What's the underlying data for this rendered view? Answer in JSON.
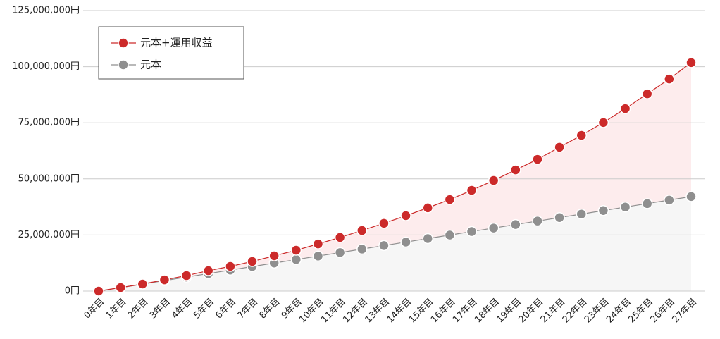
{
  "chart_data": {
    "type": "line",
    "categories": [
      "0年目",
      "1年目",
      "2年目",
      "3年目",
      "4年目",
      "5年目",
      "6年目",
      "7年目",
      "8年目",
      "9年目",
      "10年目",
      "11年目",
      "12年目",
      "13年目",
      "14年目",
      "15年目",
      "16年目",
      "17年目",
      "18年目",
      "19年目",
      "20年目",
      "21年目",
      "22年目",
      "23年目",
      "24年目",
      "25年目",
      "26年目",
      "27年目"
    ],
    "series": [
      {
        "name": "元本+運用収益",
        "color": "#cc2a2a",
        "area_color": "#fdeced",
        "values": [
          0,
          1570000,
          3140000,
          5000000,
          6900000,
          9100000,
          11000000,
          13200000,
          15700000,
          18200000,
          21000000,
          23900000,
          27000000,
          30200000,
          33600000,
          37100000,
          40800000,
          44900000,
          49300000,
          54000000,
          58700000,
          64100000,
          69400000,
          75100000,
          81300000,
          87900000,
          94500000,
          101800000
        ]
      },
      {
        "name": "元本",
        "color": "#8f8f8f",
        "area_color": "#f6f6f6",
        "values": [
          0,
          1560000,
          3120000,
          4680000,
          6240000,
          7800000,
          9360000,
          10920000,
          12480000,
          14040000,
          15600000,
          17160000,
          18720000,
          20280000,
          21840000,
          23400000,
          24960000,
          26520000,
          28080000,
          29640000,
          31200000,
          32760000,
          34320000,
          35880000,
          37440000,
          39000000,
          40560000,
          42120000
        ]
      }
    ],
    "ylim": [
      0,
      125000000
    ],
    "yticks": [
      {
        "value": 0,
        "label": "0円"
      },
      {
        "value": 25000000,
        "label": "25,000,000円"
      },
      {
        "value": 50000000,
        "label": "50,000,000円"
      },
      {
        "value": 75000000,
        "label": "75,000,000円"
      },
      {
        "value": 100000000,
        "label": "100,000,000円"
      },
      {
        "value": 125000000,
        "label": "125,000,000円"
      }
    ],
    "grid": true,
    "legend": "upper-left"
  }
}
